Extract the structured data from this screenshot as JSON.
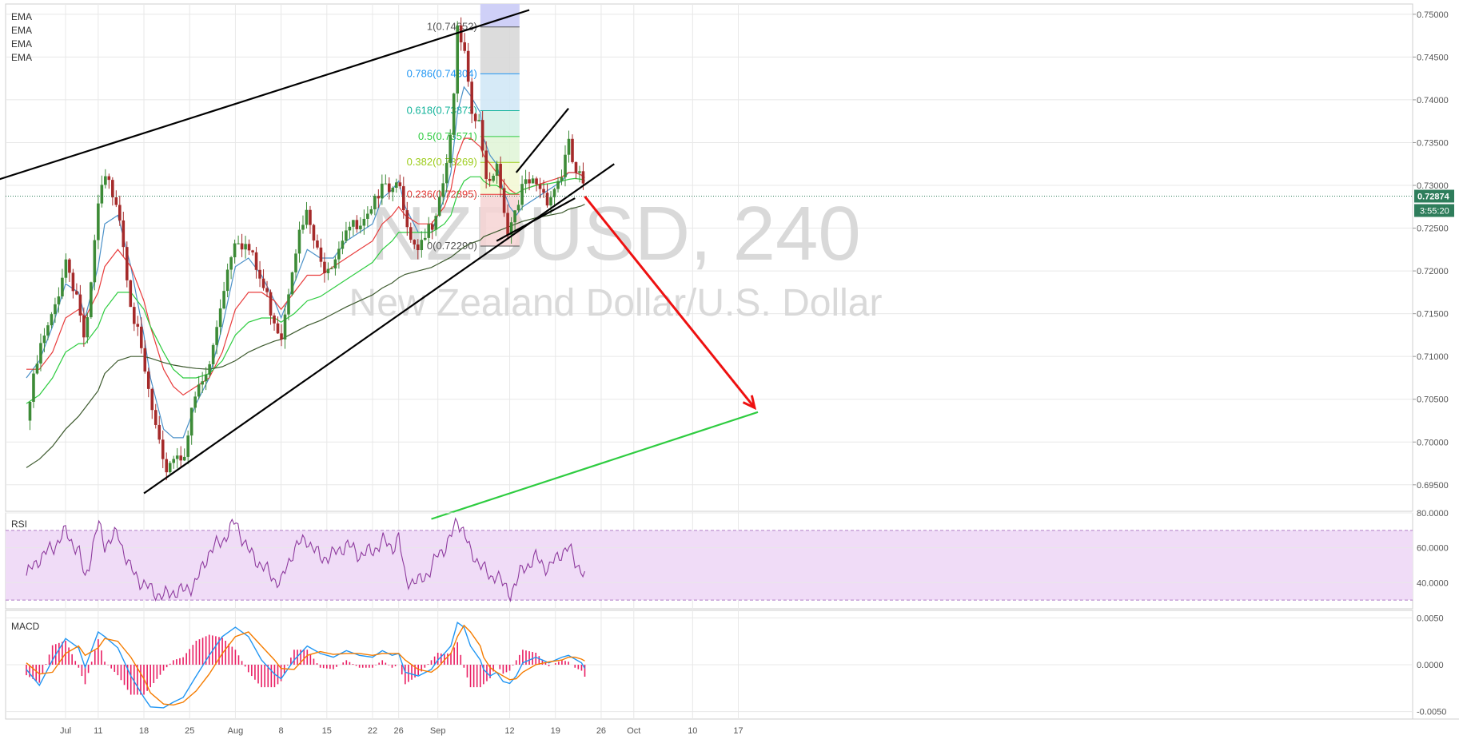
{
  "chart_data": {
    "type": "line",
    "symbol": "NZDUSD, 240",
    "instrument": "New Zealand Dollar/U.S. Dollar",
    "indicators": [
      "EMA",
      "EMA",
      "EMA",
      "EMA"
    ],
    "current_price": "0.72874",
    "countdown": "3:55:20",
    "x_ticks": [
      {
        "label": "Jul",
        "day": 6
      },
      {
        "label": "11",
        "day": 11
      },
      {
        "label": "18",
        "day": 18
      },
      {
        "label": "25",
        "day": 25
      },
      {
        "label": "Aug",
        "day": 32
      },
      {
        "label": "8",
        "day": 39
      },
      {
        "label": "15",
        "day": 46
      },
      {
        "label": "22",
        "day": 53
      },
      {
        "label": "26",
        "day": 57
      },
      {
        "label": "Sep",
        "day": 63
      },
      {
        "label": "12",
        "day": 74
      },
      {
        "label": "19",
        "day": 81
      },
      {
        "label": "26",
        "day": 88
      },
      {
        "label": "Oct",
        "day": 93
      },
      {
        "label": "10",
        "day": 102
      },
      {
        "label": "17",
        "day": 109
      }
    ],
    "price_axis": {
      "ylim": [
        0.6919,
        0.7512
      ],
      "ticks": [
        "0.75000",
        "0.74500",
        "0.74000",
        "0.73500",
        "0.73000",
        "0.72500",
        "0.72000",
        "0.71500",
        "0.71000",
        "0.70500",
        "0.70000",
        "0.69500"
      ]
    },
    "price_series": {
      "x": [
        0,
        2,
        4,
        6,
        8,
        9,
        11,
        12,
        14,
        16,
        18,
        19,
        21,
        22.5,
        24,
        26,
        28,
        30,
        32,
        34,
        36,
        38,
        39,
        41,
        43,
        45,
        47,
        49,
        51,
        53,
        54.5,
        56,
        57,
        58,
        60,
        62,
        63,
        64,
        65,
        66,
        67,
        68,
        69.5,
        70,
        71,
        72,
        73,
        74,
        75,
        76,
        78,
        80,
        82,
        83,
        84,
        85,
        85.5
      ],
      "y": [
        0.7025,
        0.7105,
        0.7145,
        0.7215,
        0.7165,
        0.7105,
        0.7275,
        0.7305,
        0.7285,
        0.7165,
        0.7085,
        0.7045,
        0.6965,
        0.6985,
        0.6985,
        0.7055,
        0.7085,
        0.7175,
        0.7245,
        0.7225,
        0.7185,
        0.7145,
        0.7125,
        0.7225,
        0.7265,
        0.7205,
        0.7215,
        0.7255,
        0.7245,
        0.7265,
        0.7315,
        0.7295,
        0.7325,
        0.7245,
        0.7215,
        0.7255,
        0.7285,
        0.7315,
        0.7365,
        0.7475,
        0.7455,
        0.7385,
        0.7365,
        0.7325,
        0.7305,
        0.7335,
        0.7275,
        0.7245,
        0.7265,
        0.7295,
        0.7305,
        0.7285,
        0.7315,
        0.7345,
        0.7315,
        0.7305,
        0.7287
      ]
    },
    "ema_series": [
      {
        "period": "fast",
        "color": "#4a90c8",
        "y": [
          0.7075,
          0.7095,
          0.7135,
          0.7185,
          0.7175,
          0.7145,
          0.7205,
          0.7255,
          0.7265,
          0.7205,
          0.7125,
          0.7075,
          0.7015,
          0.7005,
          0.7005,
          0.7045,
          0.7075,
          0.7135,
          0.7205,
          0.7215,
          0.7195,
          0.7165,
          0.7145,
          0.7185,
          0.7225,
          0.7215,
          0.7215,
          0.7235,
          0.7245,
          0.7255,
          0.7285,
          0.7295,
          0.7305,
          0.7275,
          0.7245,
          0.7245,
          0.7265,
          0.7285,
          0.7315,
          0.7385,
          0.7415,
          0.7405,
          0.7385,
          0.7355,
          0.7335,
          0.7325,
          0.7295,
          0.7275,
          0.7265,
          0.7275,
          0.7285,
          0.7295,
          0.7305,
          0.7315,
          0.7315,
          0.7312,
          0.7305
        ]
      },
      {
        "period": "medium",
        "color": "#e83c3c",
        "y": [
          0.7085,
          0.7085,
          0.7105,
          0.7145,
          0.7155,
          0.7145,
          0.7175,
          0.7205,
          0.7225,
          0.7205,
          0.7165,
          0.7135,
          0.7085,
          0.7065,
          0.7055,
          0.7065,
          0.7075,
          0.7105,
          0.7155,
          0.7175,
          0.7175,
          0.7165,
          0.7155,
          0.7175,
          0.7195,
          0.7195,
          0.7205,
          0.7215,
          0.7225,
          0.7235,
          0.7255,
          0.7265,
          0.7275,
          0.7265,
          0.7255,
          0.7255,
          0.7265,
          0.7275,
          0.7295,
          0.7335,
          0.7355,
          0.7355,
          0.7345,
          0.7335,
          0.7325,
          0.7315,
          0.7305,
          0.7295,
          0.729,
          0.7295,
          0.73,
          0.7305,
          0.731,
          0.7315,
          0.7315,
          0.7312,
          0.7309
        ]
      },
      {
        "period": "slow",
        "color": "#2ecc40",
        "y": [
          0.7045,
          0.7055,
          0.7075,
          0.7105,
          0.7115,
          0.7115,
          0.7135,
          0.7155,
          0.7175,
          0.7175,
          0.7155,
          0.7135,
          0.7105,
          0.7085,
          0.7075,
          0.7075,
          0.708,
          0.7095,
          0.7125,
          0.714,
          0.7145,
          0.7145,
          0.714,
          0.715,
          0.7165,
          0.717,
          0.718,
          0.719,
          0.72,
          0.721,
          0.7225,
          0.7235,
          0.7245,
          0.7245,
          0.7245,
          0.7245,
          0.725,
          0.7255,
          0.7265,
          0.729,
          0.7305,
          0.731,
          0.731,
          0.7305,
          0.73,
          0.73,
          0.7295,
          0.729,
          0.729,
          0.7295,
          0.73,
          0.7302,
          0.7305,
          0.7307,
          0.7308,
          0.7307,
          0.7305
        ]
      },
      {
        "period": "long",
        "color": "#3d5a2e",
        "y": [
          0.697,
          0.698,
          0.6995,
          0.7015,
          0.703,
          0.704,
          0.706,
          0.708,
          0.7095,
          0.71,
          0.71,
          0.7098,
          0.7093,
          0.709,
          0.7088,
          0.7086,
          0.7085,
          0.7088,
          0.7095,
          0.7105,
          0.7112,
          0.7118,
          0.712,
          0.7128,
          0.7136,
          0.7142,
          0.715,
          0.7158,
          0.7165,
          0.7172,
          0.718,
          0.7186,
          0.7192,
          0.7196,
          0.72,
          0.7204,
          0.7208,
          0.7212,
          0.7216,
          0.7222,
          0.7228,
          0.7232,
          0.7236,
          0.724,
          0.7243,
          0.7246,
          0.7249,
          0.7252,
          0.7255,
          0.7258,
          0.7262,
          0.7265,
          0.7268,
          0.7272,
          0.7274,
          0.7276,
          0.7278
        ]
      }
    ],
    "trendlines": [
      {
        "name": "channel-upper",
        "color": "#000000",
        "x": [
          -5,
          77
        ],
        "y": [
          0.7305,
          0.7505
        ]
      },
      {
        "name": "channel-lower",
        "color": "#000000",
        "x": [
          18,
          90
        ],
        "y": [
          0.694,
          0.7325
        ]
      },
      {
        "name": "wedge-upper",
        "color": "#000000",
        "x": [
          75,
          83
        ],
        "y": [
          0.7315,
          0.739
        ]
      },
      {
        "name": "wedge-lower",
        "color": "#000000",
        "x": [
          72,
          84
        ],
        "y": [
          0.7235,
          0.7285
        ]
      },
      {
        "name": "support-green",
        "color": "#2ecc40",
        "x": [
          62,
          112
        ],
        "y": [
          0.691,
          0.7035
        ]
      }
    ],
    "projection_arrow": {
      "color": "#ee1111",
      "x": [
        85.5,
        111.5
      ],
      "y": [
        0.7287,
        0.704
      ]
    },
    "fibonacci": {
      "x_start": 69.5,
      "x_end": 75.5,
      "levels": [
        {
          "label": "1(0.74852)",
          "value": 0.74852,
          "color": "#555555",
          "fill": "#d6d6d6"
        },
        {
          "label": "0.786(0.74304)",
          "value": 0.74304,
          "color": "#2196f3",
          "fill": "#cfe6f6"
        },
        {
          "label": "0.618(0.73873)",
          "value": 0.73873,
          "color": "#11b39a",
          "fill": "#d2f0e6"
        },
        {
          "label": "0.5(0.73571)",
          "value": 0.73571,
          "color": "#2ecc40",
          "fill": "#dff5d6"
        },
        {
          "label": "0.382(0.73269)",
          "value": 0.73269,
          "color": "#9ccc1a",
          "fill": "#f2f8d2"
        },
        {
          "label": "0.236(0.72895)",
          "value": 0.72895,
          "color": "#e53935",
          "fill": "#f6d4d4"
        },
        {
          "label": "0(0.72290)",
          "value": 0.7229,
          "color": "#555555",
          "fill": null
        }
      ],
      "top_fill": "#cfd0f7"
    },
    "rsi": {
      "label": "RSI",
      "ylim": [
        25,
        80
      ],
      "ticks": [
        "80.0000",
        "60.0000",
        "40.0000"
      ],
      "band": [
        30,
        70
      ],
      "x": [
        0,
        2,
        4,
        6,
        8,
        9,
        11,
        12,
        14,
        16,
        18,
        19,
        21,
        22.5,
        24,
        26,
        28,
        30,
        32,
        34,
        36,
        38,
        39,
        41,
        43,
        45,
        47,
        49,
        51,
        53,
        54.5,
        56,
        57,
        58,
        60,
        62,
        63,
        64,
        65,
        66,
        67,
        68,
        69.5,
        70,
        71,
        72,
        73,
        74,
        75,
        76,
        78,
        80,
        82,
        83,
        84,
        85,
        85.5
      ],
      "y": [
        44,
        54,
        60,
        69,
        58,
        42,
        74,
        62,
        68,
        47,
        39,
        36,
        32,
        35,
        35,
        40,
        58,
        64,
        75,
        58,
        50,
        42,
        40,
        60,
        65,
        54,
        56,
        62,
        56,
        58,
        64,
        60,
        66,
        42,
        40,
        48,
        56,
        60,
        66,
        76,
        70,
        56,
        52,
        48,
        42,
        46,
        38,
        34,
        40,
        48,
        54,
        48,
        58,
        60,
        52,
        48,
        43
      ]
    },
    "macd": {
      "label": "MACD",
      "ylim": [
        -0.0058,
        0.0058
      ],
      "ticks": [
        "0.0050",
        "0.0000",
        "-0.0050"
      ],
      "x": [
        0,
        2,
        4,
        6,
        8,
        9,
        11,
        12,
        14,
        16,
        18,
        19,
        21,
        22.5,
        24,
        26,
        28,
        30,
        32,
        34,
        36,
        38,
        39,
        41,
        43,
        45,
        47,
        49,
        51,
        53,
        54.5,
        56,
        57,
        58,
        60,
        62,
        63,
        64,
        65,
        66,
        67,
        68,
        69.5,
        70,
        71,
        72,
        73,
        74,
        75,
        76,
        78,
        80,
        82,
        83,
        84,
        85,
        85.5
      ],
      "macd": [
        -0.0005,
        -0.0022,
        0.0005,
        0.0028,
        0.0018,
        -0.0003,
        0.0035,
        0.003,
        0.0018,
        -0.0012,
        -0.0035,
        -0.0045,
        -0.0046,
        -0.004,
        -0.0035,
        -0.0012,
        0.001,
        0.003,
        0.004,
        0.003,
        0.0005,
        -0.001,
        -0.0015,
        0.0005,
        0.002,
        0.0012,
        0.0008,
        0.0015,
        0.001,
        0.0008,
        0.0015,
        0.001,
        0.0012,
        -0.0008,
        -0.0012,
        -0.0005,
        0.0005,
        0.0012,
        0.002,
        0.0045,
        0.004,
        0.002,
        0.0005,
        -0.0005,
        -0.0012,
        -0.0008,
        -0.0018,
        -0.002,
        -0.0012,
        0.0002,
        0.0008,
        0.0002,
        0.0008,
        0.001,
        0.0006,
        0.0002,
        -0.0004
      ],
      "signal": [
        0.0002,
        -0.001,
        -0.0008,
        0.0012,
        0.002,
        0.001,
        0.0018,
        0.0028,
        0.0025,
        0.0008,
        -0.0015,
        -0.003,
        -0.0042,
        -0.0043,
        -0.004,
        -0.0028,
        -0.001,
        0.0012,
        0.003,
        0.0035,
        0.002,
        0.0005,
        -0.0004,
        -0.0005,
        0.001,
        0.0014,
        0.0011,
        0.0012,
        0.0012,
        0.001,
        0.0012,
        0.0012,
        0.0012,
        0.0005,
        -0.0005,
        -0.0008,
        -0.0003,
        0.0005,
        0.0012,
        0.003,
        0.0042,
        0.0035,
        0.002,
        0.0008,
        -0.0003,
        -0.0008,
        -0.0012,
        -0.0016,
        -0.0015,
        -0.0008,
        0.0,
        0.0003,
        0.0005,
        0.0008,
        0.0008,
        0.0006,
        0.0004
      ]
    },
    "colors": {
      "up_candle": "#3d8b37",
      "down_candle": "#a52a2a",
      "rsi_line": "#8e3b9e",
      "rsi_band": "#f0dcf7",
      "macd_line": "#2196f3",
      "signal_line": "#f57c00",
      "histogram": "#e91e63",
      "grid": "#e8e8e8",
      "watermark": "#d9d9d9",
      "price_label_bg": "#2e7d5b"
    }
  }
}
